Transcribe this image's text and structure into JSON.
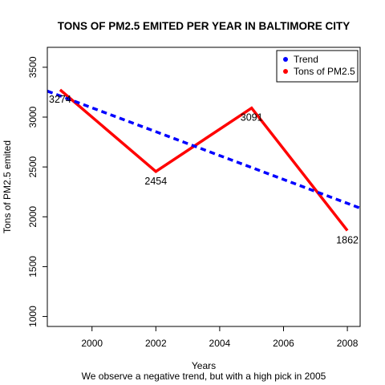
{
  "chart_data": {
    "type": "line",
    "title": "TONS OF PM2.5 EMITED PER YEAR IN BALTIMORE CITY",
    "xlabel": "Years",
    "ylabel": "Tons of PM2.5 emited",
    "subtitle": "We observe a negative trend, but with a high pick in 2005",
    "xlim": [
      1998.6,
      2008.4
    ],
    "ylim": [
      900,
      3700
    ],
    "x_ticks": [
      "2000",
      "2002",
      "2004",
      "2006",
      "2008"
    ],
    "y_ticks": [
      "1000",
      "1500",
      "2000",
      "2500",
      "3000",
      "3500"
    ],
    "x": [
      1999,
      2002,
      2005,
      2008
    ],
    "series": [
      {
        "name": "Tons of PM2.5",
        "color": "#ff0000",
        "style": "solid",
        "values": [
          3274,
          2454,
          3091,
          1862
        ],
        "labels": [
          "3274",
          "2454",
          "3091",
          "1862"
        ]
      },
      {
        "name": "Trend",
        "color": "#0000ff",
        "style": "dashed",
        "line": {
          "x": [
            1998.6,
            2008.4
          ],
          "y": [
            3261,
            2087
          ]
        }
      }
    ],
    "legend": {
      "position": "top-right"
    },
    "grid": false
  }
}
